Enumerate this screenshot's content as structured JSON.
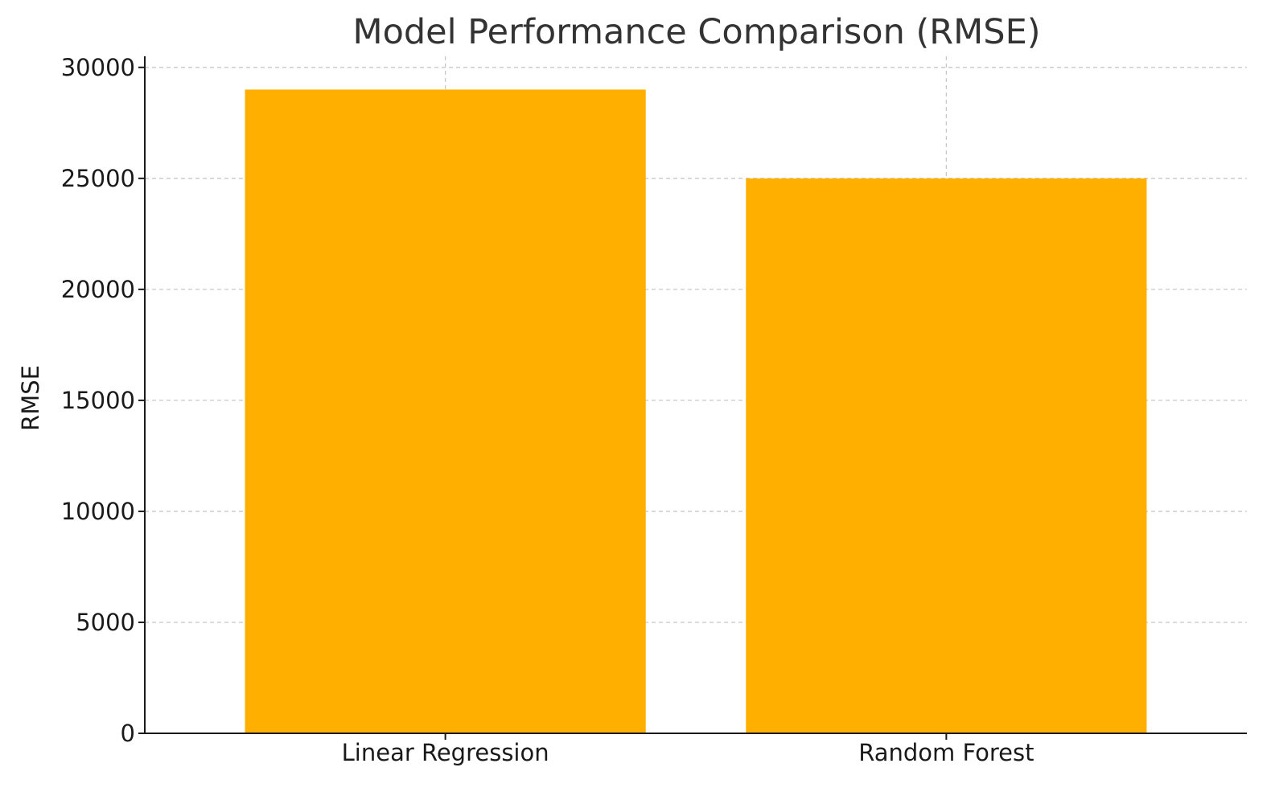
{
  "chart_data": {
    "type": "bar",
    "title": "Model Performance Comparison (RMSE)",
    "xlabel": "",
    "ylabel": "RMSE",
    "categories": [
      "Linear Regression",
      "Random Forest"
    ],
    "values": [
      29000,
      25000
    ],
    "ylim": [
      0,
      30500
    ],
    "yticks": [
      0,
      5000,
      10000,
      15000,
      20000,
      25000,
      30000
    ],
    "bar_color": "#FFAF00",
    "grid": true
  }
}
